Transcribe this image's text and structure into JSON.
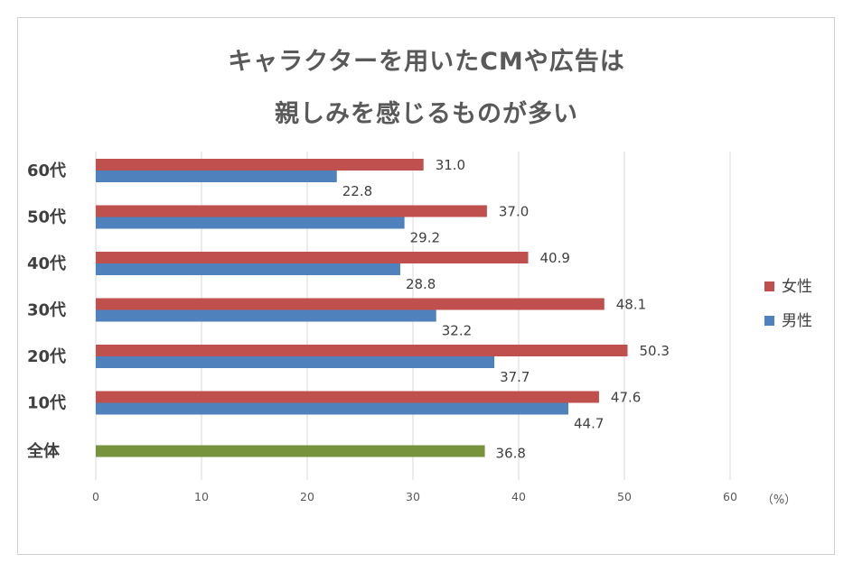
{
  "title_lines": [
    "キャラクターを用いたCMや広告は",
    "親しみを感じるものが多い"
  ],
  "chart_data": {
    "type": "bar",
    "orientation": "horizontal",
    "title": "キャラクターを用いたCMや広告は 親しみを感じるものが多い",
    "categories": [
      "60代",
      "50代",
      "40代",
      "30代",
      "20代",
      "10代",
      "全体"
    ],
    "series": [
      {
        "name": "女性",
        "color": "#c0504d",
        "values": [
          31.0,
          37.0,
          40.9,
          48.1,
          50.3,
          47.6,
          null
        ]
      },
      {
        "name": "男性",
        "color": "#4f81bd",
        "values": [
          22.8,
          29.2,
          28.8,
          32.2,
          37.7,
          44.7,
          null
        ]
      },
      {
        "color": "#77933c",
        "values": [
          null,
          null,
          null,
          null,
          null,
          null,
          36.8
        ]
      }
    ],
    "xlim": [
      0,
      60
    ],
    "xticks": [
      0,
      10,
      20,
      30,
      40,
      50,
      60
    ],
    "unit": "（%）",
    "grid": true,
    "legend_position": "right"
  }
}
